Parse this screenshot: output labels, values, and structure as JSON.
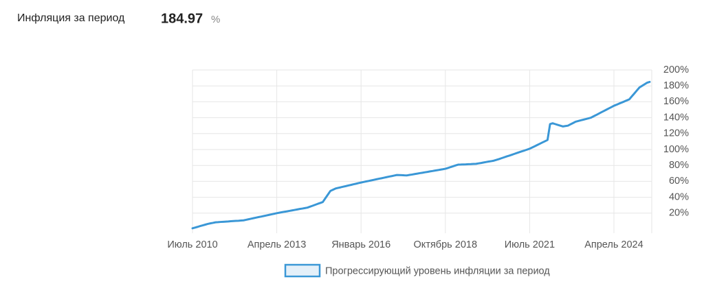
{
  "header": {
    "title": "Инфляция за период",
    "value": "184.97",
    "unit": "%"
  },
  "chart_data": {
    "type": "line",
    "categories": [
      "Июль 2010",
      null,
      null,
      null,
      null,
      null,
      null,
      null,
      null,
      null,
      null,
      null,
      null,
      null,
      null,
      null,
      null,
      null,
      null,
      null,
      null,
      null,
      null,
      null,
      null,
      null,
      null,
      null,
      null,
      null,
      null,
      null,
      null,
      "Апрель 2013",
      null,
      null,
      null,
      null,
      null,
      null,
      null,
      null,
      null,
      null,
      null,
      null,
      null,
      null,
      null,
      null,
      null,
      null,
      null,
      null,
      null,
      null,
      null,
      null,
      null,
      null,
      null,
      null,
      null,
      null,
      null,
      null,
      "Январь 2016",
      null,
      null,
      null,
      null,
      null,
      null,
      null,
      null,
      null,
      null,
      null,
      null,
      null,
      null,
      null,
      null,
      null,
      null,
      null,
      null,
      null,
      null,
      null,
      null,
      null,
      null,
      null,
      null,
      null,
      null,
      null,
      null,
      "Октябрь 2018",
      null,
      null,
      null,
      null,
      null,
      null,
      null,
      null,
      null,
      null,
      null,
      null,
      null,
      null,
      null,
      null,
      null,
      null,
      null,
      null,
      null,
      null,
      null,
      null,
      null,
      null,
      null,
      null,
      null,
      null,
      null,
      null,
      "Июль 2021",
      null,
      null,
      null,
      null,
      null,
      null,
      null,
      null,
      null,
      null,
      null,
      null,
      null,
      null,
      null,
      null,
      null,
      null,
      null,
      null,
      null,
      null,
      null,
      null,
      null,
      null,
      null,
      null,
      null,
      null,
      null,
      null,
      "Апрель 2024",
      null,
      null,
      null,
      null,
      null,
      null,
      null,
      null,
      null,
      null,
      null,
      null,
      null,
      null
    ],
    "series": [
      {
        "name": "Прогрессирующий уровень инфляции за период",
        "color": "#3a97d6",
        "values": [
          1,
          1.9,
          2.8,
          3.8,
          4.7,
          5.6,
          6.5,
          7.2,
          7.8,
          8.5,
          8.7,
          9,
          9.2,
          9.4,
          9.6,
          9.9,
          10.1,
          10.3,
          10.5,
          10.8,
          11,
          11.7,
          12.4,
          13.1,
          13.8,
          14.5,
          15.2,
          15.8,
          16.5,
          17.2,
          17.9,
          18.6,
          19.3,
          20,
          20.6,
          21.2,
          21.8,
          22.3,
          22.9,
          23.5,
          24.1,
          24.7,
          25.3,
          25.8,
          26.4,
          27,
          28.2,
          29.3,
          30.5,
          31.7,
          32.8,
          34,
          38.7,
          43.3,
          48,
          49.5,
          51,
          51.8,
          52.5,
          53.3,
          54,
          54.8,
          55.5,
          56.3,
          57,
          57.8,
          58.5,
          59.2,
          59.9,
          60.5,
          61.2,
          61.9,
          62.6,
          63.3,
          63.9,
          64.6,
          65.3,
          66,
          66.6,
          67.3,
          68,
          67.9,
          67.8,
          67.6,
          67.5,
          68.1,
          68.6,
          69.2,
          69.7,
          70.3,
          70.8,
          71.4,
          71.9,
          72.5,
          73,
          73.6,
          74.1,
          74.7,
          75.2,
          75.8,
          76.8,
          77.9,
          78.9,
          80,
          81,
          81.1,
          81.3,
          81.4,
          81.6,
          81.7,
          81.9,
          82,
          82.6,
          83.1,
          83.7,
          84.3,
          84.9,
          85.4,
          86,
          87,
          88,
          89.1,
          90.2,
          91.3,
          92.3,
          93.4,
          94.5,
          95.6,
          96.7,
          97.8,
          98.8,
          99.9,
          101,
          102.6,
          104.1,
          105.7,
          107.3,
          108.9,
          110.4,
          112,
          132,
          133,
          132,
          131,
          130,
          129,
          129.5,
          130,
          131.7,
          133.3,
          135,
          135.8,
          136.7,
          137.5,
          138.3,
          139.2,
          140,
          141.7,
          143.3,
          145,
          146.7,
          148.3,
          150,
          151.7,
          153.3,
          155,
          156.3,
          157.7,
          159,
          160.3,
          161.7,
          163,
          166.8,
          170.5,
          174.3,
          178,
          180,
          182,
          184,
          184.97
        ]
      }
    ],
    "ylim": [
      0,
      200
    ],
    "yticks": [
      {
        "value": 20,
        "label": "20%"
      },
      {
        "value": 40,
        "label": "40%"
      },
      {
        "value": 60,
        "label": "60%"
      },
      {
        "value": 80,
        "label": "80%"
      },
      {
        "value": 100,
        "label": "100%"
      },
      {
        "value": 120,
        "label": "120%"
      },
      {
        "value": 140,
        "label": "140%"
      },
      {
        "value": 160,
        "label": "160%"
      },
      {
        "value": 180,
        "label": "180%"
      },
      {
        "value": 200,
        "label": "200%"
      }
    ],
    "grid": true,
    "y_axis_side": "right",
    "legend": "bottom"
  }
}
